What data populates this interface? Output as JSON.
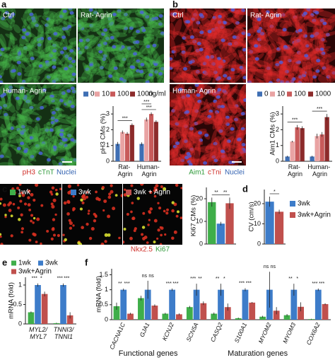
{
  "figure": {
    "a": {
      "label": "a",
      "images": [
        "Ctrl",
        "Rat- Agrin",
        "Human- Agrin"
      ],
      "stains": [
        "pH3",
        "cTnT",
        "Nuclei"
      ]
    },
    "b": {
      "label": "b",
      "images": [
        "Ctrl",
        "Rat- Agrin",
        "Human- Agrin"
      ],
      "stains": [
        "Aim1",
        "cTni",
        "Nuclei"
      ]
    },
    "c": {
      "label": "c",
      "stains": [
        "Nkx2.5",
        "Ki67"
      ]
    },
    "d": {
      "label": "d"
    },
    "e": {
      "label": "e"
    },
    "f": {
      "label": "f"
    }
  },
  "chart_data": [
    {
      "type": "bar",
      "y_label": "pH3 CMs (%)",
      "categories": [
        "Rat- Agrin",
        "Human- Agrin"
      ],
      "series": [
        {
          "name": "0",
          "color": "#3f6fb4",
          "values": [
            1.1,
            1.1
          ],
          "errors": [
            0.12,
            0.1
          ]
        },
        {
          "name": "10",
          "color": "#e9a3a3",
          "values": [
            1.85,
            2.65
          ],
          "errors": [
            0.1,
            0.12
          ]
        },
        {
          "name": "100",
          "color": "#c85a5a",
          "values": [
            1.75,
            3.0
          ],
          "errors": [
            0.1,
            0.1
          ]
        },
        {
          "name": "1000",
          "color": "#8c2b2b",
          "values": [
            2.3,
            2.5
          ],
          "errors": [
            0.1,
            0.1
          ]
        }
      ],
      "legend_unit": "ng/ml",
      "ylim": [
        0,
        3.5
      ],
      "yticks": [
        0,
        1,
        2,
        3
      ],
      "annotations": [
        "***",
        "***",
        "***"
      ]
    },
    {
      "type": "bar",
      "y_label": "Aim1 CMs (%)",
      "categories": [
        "Rat- Agrin",
        "Human- Agrin"
      ],
      "series": [
        {
          "name": "0",
          "color": "#3f6fb4",
          "values": [
            0.3,
            0.3
          ],
          "errors": [
            0.05,
            0.05
          ]
        },
        {
          "name": "10",
          "color": "#e9a3a3",
          "values": [
            1.25,
            1.6
          ],
          "errors": [
            0.05,
            0.15
          ]
        },
        {
          "name": "100",
          "color": "#c85a5a",
          "values": [
            2.15,
            1.7
          ],
          "errors": [
            0.15,
            0.15
          ]
        },
        {
          "name": "1000",
          "color": "#8c2b2b",
          "values": [
            2.1,
            2.8
          ],
          "errors": [
            0.12,
            0.2
          ]
        }
      ],
      "ylim": [
        0,
        3.5
      ],
      "yticks": [
        0,
        1,
        2,
        3
      ],
      "annotations": [
        "***",
        "***"
      ]
    },
    {
      "type": "bar",
      "y_label": "Ki67 CMs (%)",
      "series": [
        {
          "name": "1wk",
          "color": "#3fae49",
          "values": [
            18.5
          ],
          "errors": [
            2
          ]
        },
        {
          "name": "3wk",
          "color": "#3d7cc9",
          "values": [
            9
          ],
          "errors": [
            0.8
          ]
        },
        {
          "name": "3wk + Agrin",
          "color": "#c0504d",
          "values": [
            18
          ],
          "errors": [
            2.5
          ]
        }
      ],
      "ylim": [
        0,
        25
      ],
      "yticks": [
        0,
        10,
        20
      ],
      "annotations": [
        "**",
        "**"
      ]
    },
    {
      "type": "bar",
      "y_label": "CV (cm/s)",
      "series": [
        {
          "name": "3wk",
          "color": "#3d7cc9",
          "values": [
            21
          ],
          "errors": [
            2.5
          ]
        },
        {
          "name": "3wk+Agrin",
          "color": "#c0504d",
          "values": [
            16
          ],
          "errors": [
            1
          ]
        }
      ],
      "ylim": [
        0,
        27
      ],
      "yticks": [
        0,
        10,
        20
      ],
      "annotations": [
        "*"
      ]
    },
    {
      "type": "bar",
      "y_label": "mRNA (fold)",
      "categories": [
        "MYL2/MYL7",
        "TNNI3/TNNI1"
      ],
      "series": [
        {
          "name": "1wk",
          "color": "#3fae49",
          "values": [
            0.3,
            0.02
          ],
          "errors": [
            0.02,
            0.01
          ]
        },
        {
          "name": "3wk",
          "color": "#3d7cc9",
          "values": [
            1.0,
            1.0
          ],
          "errors": [
            0.04,
            0.04
          ]
        },
        {
          "name": "3wk+Agrin",
          "color": "#c0504d",
          "values": [
            0.77,
            0.22
          ],
          "errors": [
            0.06,
            0.08
          ]
        }
      ],
      "ylim": [
        0,
        1.2
      ],
      "yticks": [
        0,
        0.5,
        1
      ],
      "annotations": [
        "***",
        "*",
        "***",
        "***"
      ]
    },
    {
      "type": "bar",
      "y_label": "mRNA (fold)",
      "categories": [
        "CACNA1C",
        "GJA1",
        "KCNJ2",
        "SCN5A",
        "CASQ2",
        "S100A1",
        "MYOM2",
        "MYOM3",
        "COX6A2"
      ],
      "group_labels": [
        "Functional genes",
        "Maturation genes"
      ],
      "series": [
        {
          "name": "1wk",
          "color": "#3fae49",
          "values": [
            0.45,
            0.72,
            0.2,
            0.42,
            0.2,
            0.05,
            0.1,
            0.15,
            0.02
          ],
          "errors": [
            0.12,
            0.08,
            0.03,
            0.04,
            0.04,
            0.02,
            0.03,
            0.04,
            0.01
          ]
        },
        {
          "name": "3wk",
          "color": "#3d7cc9",
          "values": [
            1.0,
            1.0,
            1.0,
            1.0,
            1.0,
            1.0,
            1.0,
            1.0,
            1.0
          ],
          "errors": [
            0.04,
            0.3,
            0.04,
            0.2,
            0.2,
            0.05,
            0.6,
            0.2,
            0.04
          ]
        },
        {
          "name": "3wk+Agrin",
          "color": "#c0504d",
          "values": [
            0.2,
            0.47,
            0.18,
            0.55,
            0.42,
            0.57,
            0.3,
            0.43,
            0.52
          ],
          "errors": [
            0.03,
            0.04,
            0.03,
            0.06,
            0.12,
            0.02,
            0.12,
            0.15,
            0.03
          ]
        }
      ],
      "ylim": [
        0,
        1.7
      ],
      "yticks": [
        0,
        0.5,
        1,
        1.5
      ],
      "annotations": [
        "**",
        "***",
        "ns",
        "ns",
        "***",
        "***",
        "***",
        "**",
        "**",
        "*",
        "***",
        "***",
        "ns",
        "ns",
        "**",
        "*",
        "***",
        "***"
      ]
    }
  ]
}
